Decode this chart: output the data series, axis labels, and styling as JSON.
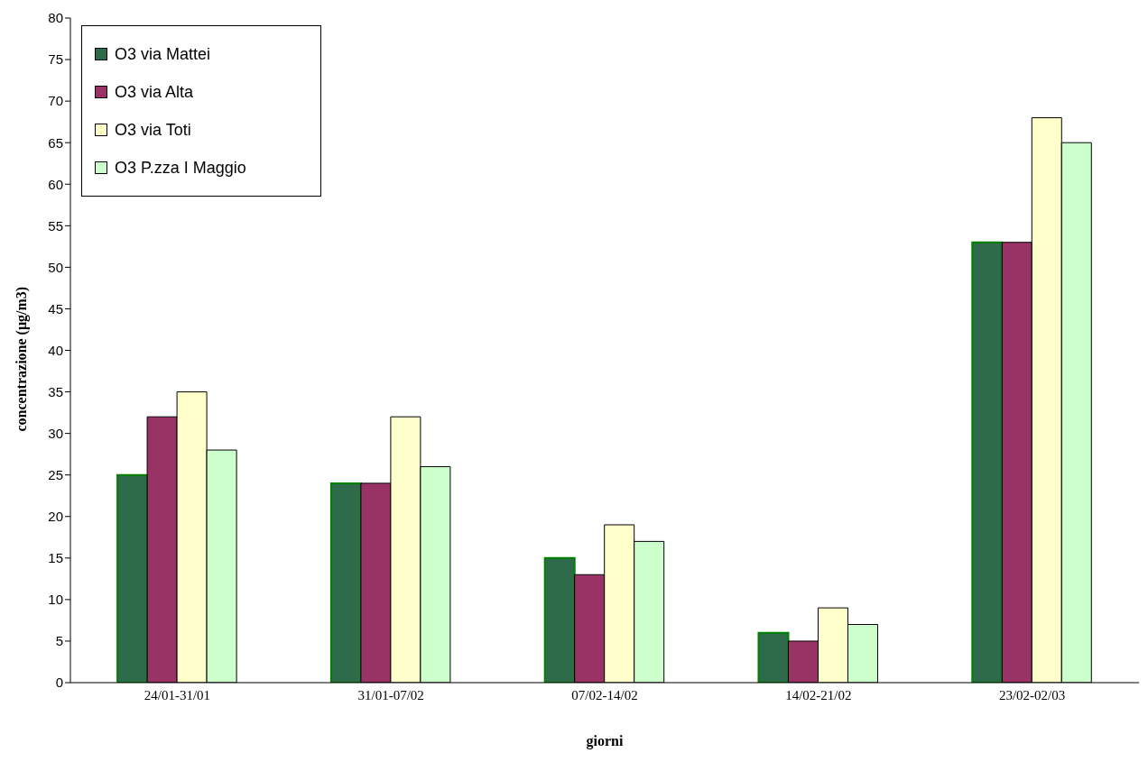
{
  "chart_data": {
    "type": "bar",
    "xlabel": "giorni",
    "ylabel": "concentrazione (μg/m3)",
    "categories": [
      "24/01-31/01",
      "31/01-07/02",
      "07/02-14/02",
      "14/02-21/02",
      "23/02-02/03"
    ],
    "series": [
      {
        "name": "O3 via Mattei",
        "color": "#2e6b4a",
        "values": [
          25,
          24,
          15,
          6,
          53
        ]
      },
      {
        "name": "O3 via Alta",
        "color": "#993366",
        "values": [
          32,
          24,
          13,
          5,
          53
        ]
      },
      {
        "name": "O3 via Toti",
        "color": "#ffffcc",
        "values": [
          35,
          32,
          19,
          9,
          68
        ]
      },
      {
        "name": "O3 P.zza I Maggio",
        "color": "#ccffcc",
        "values": [
          28,
          26,
          17,
          7,
          65
        ]
      }
    ],
    "ylim": [
      0,
      80
    ],
    "yticks": [
      0,
      5,
      10,
      15,
      20,
      25,
      30,
      35,
      40,
      45,
      50,
      55,
      60,
      65,
      70,
      75,
      80
    ],
    "grid": false,
    "legend": "top left"
  }
}
